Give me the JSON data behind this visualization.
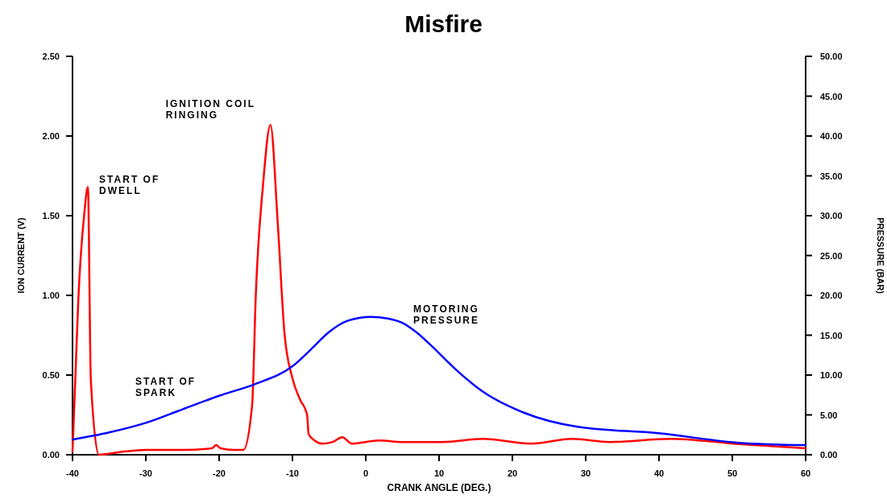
{
  "chart_data": {
    "type": "line",
    "title": "Misfire",
    "xlabel": "CRANK ANGLE (DEG.)",
    "ylabel": "ION CURRENT (V)",
    "y2label": "PRESSURE (BAR)",
    "xlim": [
      -40,
      60
    ],
    "xticks": [
      -40,
      -30,
      -20,
      -10,
      0,
      10,
      20,
      30,
      40,
      50,
      60
    ],
    "ylim": [
      0,
      2.5
    ],
    "yticks": [
      {
        "value": 0,
        "label": "0.00"
      },
      {
        "value": 0.5,
        "label": "0.50"
      },
      {
        "value": 1,
        "label": "1.00"
      },
      {
        "value": 1.5,
        "label": "1.50"
      },
      {
        "value": 2,
        "label": "2.00"
      },
      {
        "value": 2.5,
        "label": "2.50"
      }
    ],
    "y2lim": [
      0,
      50
    ],
    "y2ticks": [
      {
        "value": 0,
        "label": "0.00"
      },
      {
        "value": 5,
        "label": "5.00"
      },
      {
        "value": 10,
        "label": "10.00"
      },
      {
        "value": 15,
        "label": "15.00"
      },
      {
        "value": 20,
        "label": "20.00"
      },
      {
        "value": 25,
        "label": "25.00"
      },
      {
        "value": 30,
        "label": "30.00"
      },
      {
        "value": 35,
        "label": "35.00"
      },
      {
        "value": 40,
        "label": "40.00"
      },
      {
        "value": 45,
        "label": "45.00"
      },
      {
        "value": 50,
        "label": "50.00"
      }
    ],
    "grid": false,
    "line_style": "solid",
    "series": [
      {
        "color": "#ff0000",
        "x": [
          -40,
          -39.6,
          -39.2,
          -38.4,
          -37.9,
          -37.5,
          -36.4,
          -33,
          -30,
          -25,
          -21,
          -20.4,
          -19.8,
          -18,
          -16.7,
          -15.5,
          -15,
          -14,
          -13,
          -12,
          -11.1,
          -10,
          -9,
          -8,
          -7.8,
          -7,
          -5.9,
          -4.5,
          -3.2,
          -1.9,
          0,
          1.8,
          5,
          10.5,
          16,
          22.6,
          28.1,
          33.3,
          41.6,
          50.1,
          60
        ],
        "values": [
          0.02,
          0.5,
          0.98,
          1.51,
          1.68,
          0.47,
          0,
          0.02,
          0.03,
          0.03,
          0.04,
          0.06,
          0.04,
          0.03,
          0.03,
          0.31,
          1.0,
          1.7,
          2.07,
          1.45,
          0.77,
          0.48,
          0.35,
          0.25,
          0.13,
          0.09,
          0.07,
          0.08,
          0.11,
          0.07,
          0.08,
          0.09,
          0.08,
          0.08,
          0.1,
          0.07,
          0.1,
          0.08,
          0.1,
          0.07,
          0.04
        ]
      },
      {
        "color": "#0000ff",
        "axis": "y2",
        "x": [
          -40,
          -35,
          -30,
          -25,
          -20,
          -15,
          -10,
          -7.5,
          -5,
          -2.5,
          0.7,
          3,
          5.1,
          7,
          8.7,
          12.4,
          16,
          21.5,
          28.9,
          39.9,
          50.9,
          60
        ],
        "values": [
          1.9,
          2.8,
          4.0,
          5.7,
          7.4,
          8.9,
          11.1,
          13.2,
          15.4,
          16.8,
          17.3,
          17.1,
          16.5,
          15.3,
          13.9,
          10.6,
          7.9,
          5.3,
          3.5,
          2.7,
          1.5,
          1.2
        ]
      }
    ],
    "annotations": [
      {
        "text": "START OF\nDWELL",
        "x": -37.9,
        "y": 1.68
      },
      {
        "text": "IGNITION COIL\nRINGING",
        "x": -13,
        "y": 2.07
      },
      "START OF\nSPARK",
      "MOTORING\nPRESSURE"
    ]
  }
}
